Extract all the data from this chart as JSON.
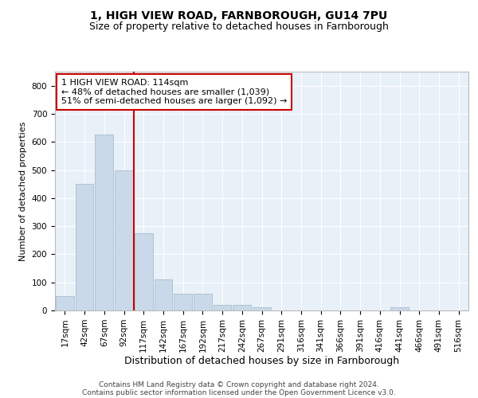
{
  "title": "1, HIGH VIEW ROAD, FARNBOROUGH, GU14 7PU",
  "subtitle": "Size of property relative to detached houses in Farnborough",
  "xlabel": "Distribution of detached houses by size in Farnborough",
  "ylabel": "Number of detached properties",
  "bar_color": "#c9d9e9",
  "bar_edge_color": "#a8bece",
  "bg_color": "#e8f0f8",
  "grid_color": "#ffffff",
  "bins": [
    "17sqm",
    "42sqm",
    "67sqm",
    "92sqm",
    "117sqm",
    "142sqm",
    "167sqm",
    "192sqm",
    "217sqm",
    "242sqm",
    "267sqm",
    "291sqm",
    "316sqm",
    "341sqm",
    "366sqm",
    "391sqm",
    "416sqm",
    "441sqm",
    "466sqm",
    "491sqm",
    "516sqm"
  ],
  "values": [
    50,
    450,
    625,
    500,
    275,
    110,
    60,
    60,
    20,
    20,
    10,
    0,
    0,
    0,
    0,
    0,
    0,
    10,
    0,
    0,
    0
  ],
  "ylim": [
    0,
    850
  ],
  "yticks": [
    0,
    100,
    200,
    300,
    400,
    500,
    600,
    700,
    800
  ],
  "vline_x": 3.5,
  "annotation_text": "1 HIGH VIEW ROAD: 114sqm\n← 48% of detached houses are smaller (1,039)\n51% of semi-detached houses are larger (1,092) →",
  "annotation_box_color": "#ffffff",
  "annotation_border_color": "#cc0000",
  "vline_color": "#cc0000",
  "footer_line1": "Contains HM Land Registry data © Crown copyright and database right 2024.",
  "footer_line2": "Contains public sector information licensed under the Open Government Licence v3.0.",
  "title_fontsize": 10,
  "subtitle_fontsize": 9,
  "xlabel_fontsize": 9,
  "ylabel_fontsize": 8,
  "tick_fontsize": 7.5,
  "annotation_fontsize": 8,
  "footer_fontsize": 6.5
}
